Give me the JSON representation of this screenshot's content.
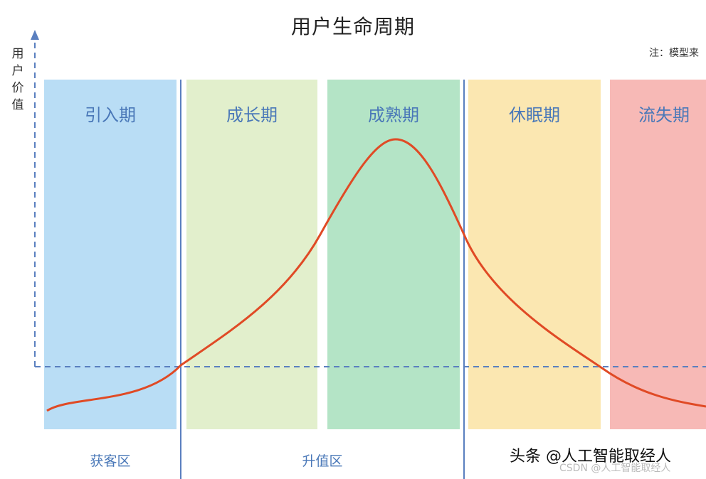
{
  "title": "用户生命周期",
  "note": "注：模型来",
  "y_axis_label": "用户价值",
  "phases": [
    {
      "label": "引入期",
      "color": "#b9ddf5"
    },
    {
      "label": "成长期",
      "color": "#e2efcc"
    },
    {
      "label": "成熟期",
      "color": "#b4e4c6"
    },
    {
      "label": "休眠期",
      "color": "#fbe7b1"
    },
    {
      "label": "流失期",
      "color": "#f7b9b6"
    }
  ],
  "zones": [
    "获客区",
    "升值区"
  ],
  "watermark": "头条 @人工智能取经人",
  "watermark_csdn": "CSDN @人工智能取经人",
  "colors": {
    "curve": "#e04a25",
    "axis": "#5a7fbf",
    "divider": "#5a7fbf"
  }
}
